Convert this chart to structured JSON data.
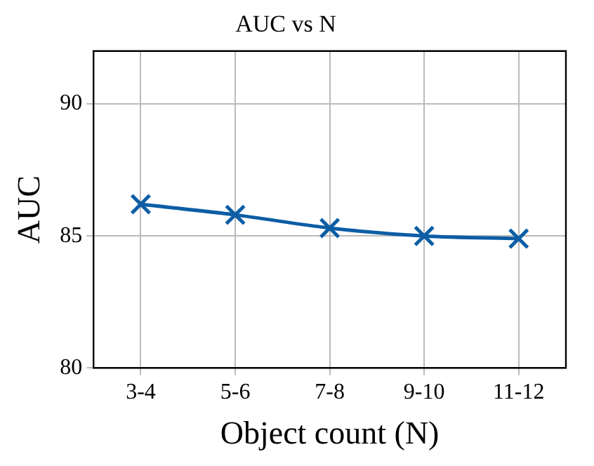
{
  "chart_data": {
    "type": "line",
    "title": "AUC vs N",
    "xlabel": "Object count (N)",
    "ylabel": "AUC",
    "categories": [
      "3-4",
      "5-6",
      "7-8",
      "9-10",
      "11-12"
    ],
    "series": [
      {
        "color": "#0c5da5",
        "values": [
          86.2,
          85.8,
          85.3,
          85.0,
          84.9
        ]
      }
    ],
    "ylim": [
      80,
      92
    ],
    "yticks": [
      80,
      85,
      90
    ],
    "grid": true,
    "marker": "cross",
    "line_style": "solid"
  }
}
